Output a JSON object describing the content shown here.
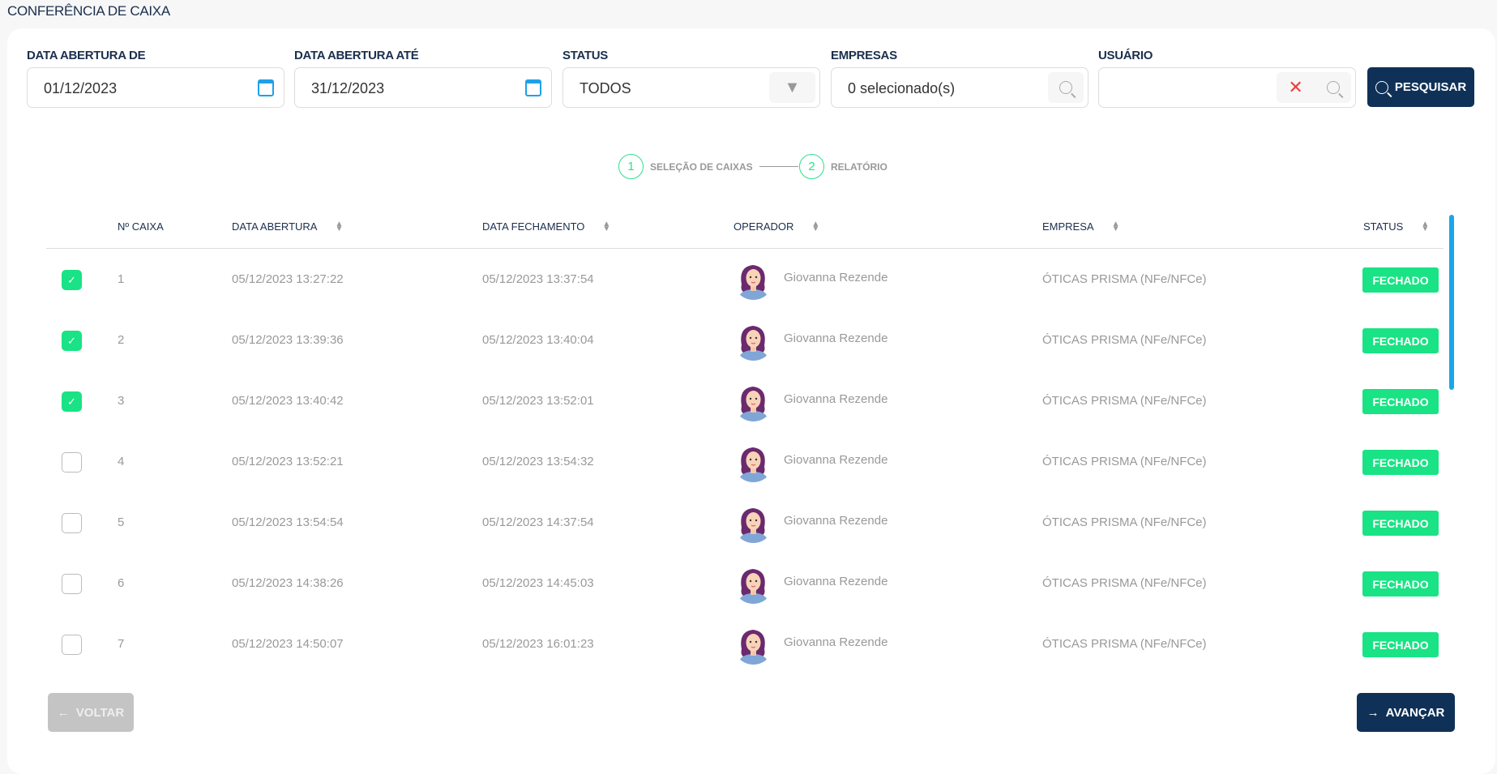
{
  "page": {
    "title": "CONFERÊNCIA DE CAIXA"
  },
  "filters": {
    "date_from": {
      "label": "DATA ABERTURA DE",
      "value": "01/12/2023"
    },
    "date_to": {
      "label": "DATA ABERTURA ATÉ",
      "value": "31/12/2023"
    },
    "status": {
      "label": "STATUS",
      "value": "TODOS"
    },
    "companies": {
      "label": "EMPRESAS",
      "value": "0 selecionado(s)"
    },
    "user": {
      "label": "USUÁRIO",
      "value": ""
    },
    "search_label": "PESQUISAR"
  },
  "stepper": [
    {
      "num": "1",
      "label": "SELEÇÃO DE CAIXAS"
    },
    {
      "num": "2",
      "label": "RELATÓRIO"
    }
  ],
  "table": {
    "headers": [
      "Nº CAIXA",
      "DATA ABERTURA",
      "DATA FECHAMENTO",
      "OPERADOR",
      "EMPRESA",
      "STATUS"
    ],
    "rows": [
      {
        "selected": true,
        "num": "1",
        "opened": "05/12/2023 13:27:22",
        "closed": "05/12/2023 13:37:54",
        "operator": "Giovanna Rezende",
        "company": "ÓTICAS PRISMA (NFe/NFCe)",
        "status": "FECHADO"
      },
      {
        "selected": true,
        "num": "2",
        "opened": "05/12/2023 13:39:36",
        "closed": "05/12/2023 13:40:04",
        "operator": "Giovanna Rezende",
        "company": "ÓTICAS PRISMA (NFe/NFCe)",
        "status": "FECHADO"
      },
      {
        "selected": true,
        "num": "3",
        "opened": "05/12/2023 13:40:42",
        "closed": "05/12/2023 13:52:01",
        "operator": "Giovanna Rezende",
        "company": "ÓTICAS PRISMA (NFe/NFCe)",
        "status": "FECHADO"
      },
      {
        "selected": false,
        "num": "4",
        "opened": "05/12/2023 13:52:21",
        "closed": "05/12/2023 13:54:32",
        "operator": "Giovanna Rezende",
        "company": "ÓTICAS PRISMA (NFe/NFCe)",
        "status": "FECHADO"
      },
      {
        "selected": false,
        "num": "5",
        "opened": "05/12/2023 13:54:54",
        "closed": "05/12/2023 14:37:54",
        "operator": "Giovanna Rezende",
        "company": "ÓTICAS PRISMA (NFe/NFCe)",
        "status": "FECHADO"
      },
      {
        "selected": false,
        "num": "6",
        "opened": "05/12/2023 14:38:26",
        "closed": "05/12/2023 14:45:03",
        "operator": "Giovanna Rezende",
        "company": "ÓTICAS PRISMA (NFe/NFCe)",
        "status": "FECHADO"
      },
      {
        "selected": false,
        "num": "7",
        "opened": "05/12/2023 14:50:07",
        "closed": "05/12/2023 16:01:23",
        "operator": "Giovanna Rezende",
        "company": "ÓTICAS PRISMA (NFe/NFCe)",
        "status": "FECHADO"
      }
    ]
  },
  "footer": {
    "back_label": "VOLTAR",
    "next_label": "AVANÇAR"
  },
  "colors": {
    "primary": "#0f3157",
    "success": "#19e384",
    "accent": "#1aa6e8"
  }
}
